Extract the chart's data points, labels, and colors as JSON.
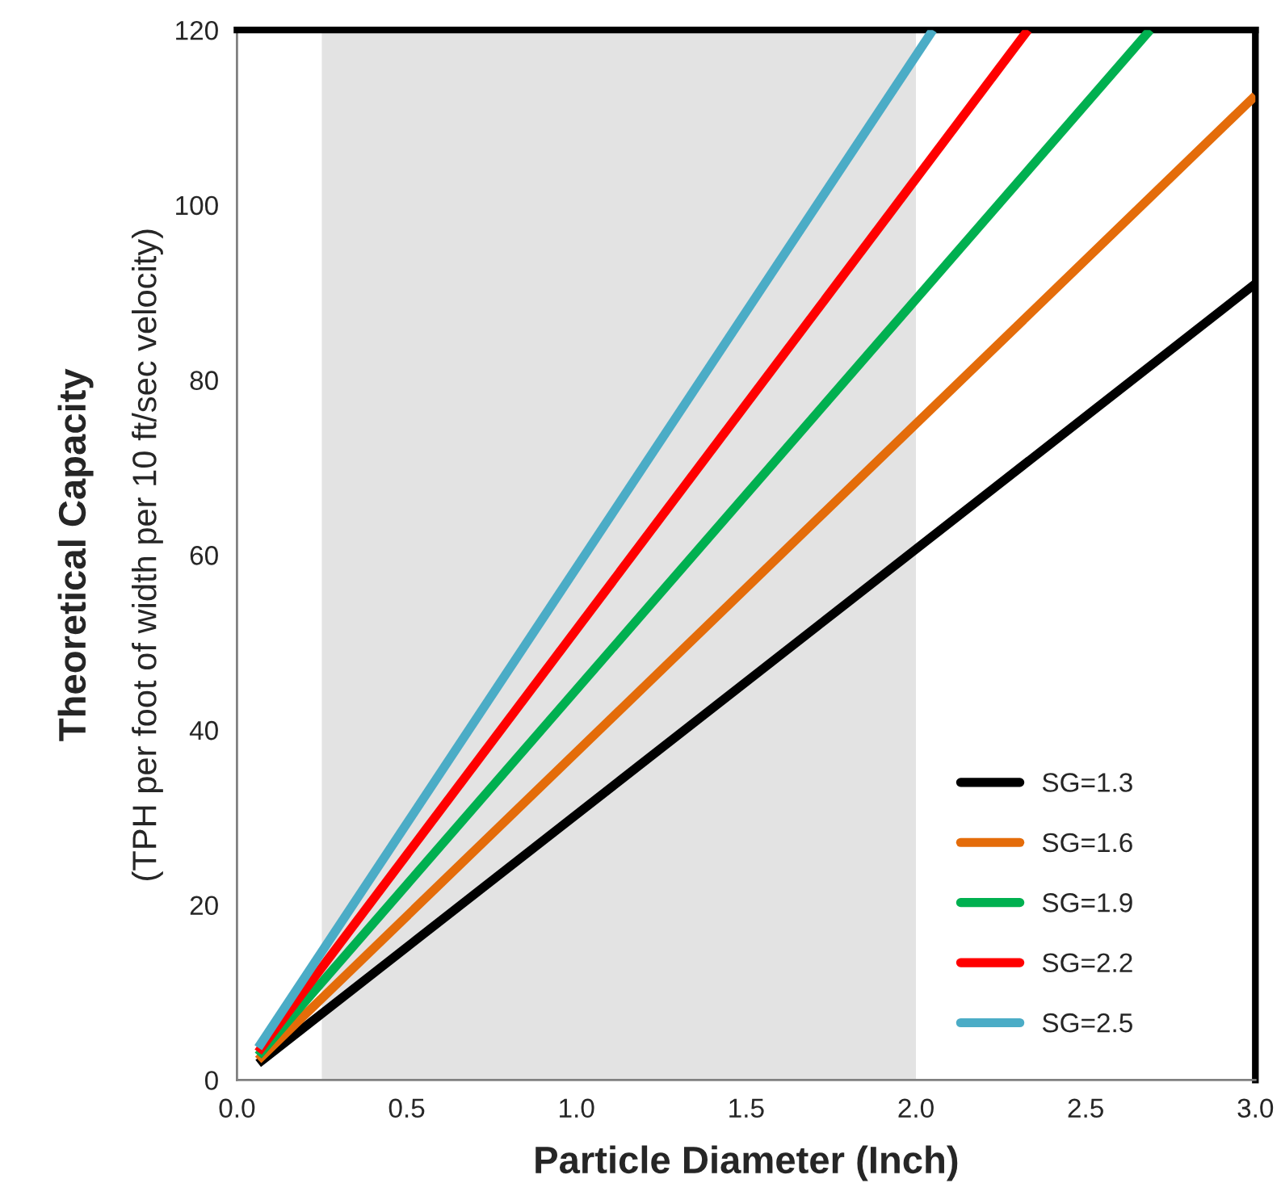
{
  "chart_data": {
    "type": "line",
    "xlabel": "Particle Diameter (Inch)",
    "ylabel": "Theoretical Capacity\n(TPH per foot of width per 10 ft/sec velocity)",
    "series": [
      {
        "name": "SG=1.3",
        "color": "#000000",
        "x": [
          0.0625,
          3.0
        ],
        "values": [
          1.9,
          91
        ]
      },
      {
        "name": "SG=1.6",
        "color": "#e46c0a",
        "x": [
          0.0625,
          3.0
        ],
        "values": [
          2.3,
          112.5
        ]
      },
      {
        "name": "SG=1.9",
        "color": "#00b050",
        "x": [
          0.0625,
          2.69
        ],
        "values": [
          2.8,
          120
        ]
      },
      {
        "name": "SG=2.2",
        "color": "#ff0000",
        "x": [
          0.0625,
          2.33
        ],
        "values": [
          3.2,
          120
        ]
      },
      {
        "name": "SG=2.5",
        "color": "#4bacc6",
        "x": [
          0.0625,
          2.05
        ],
        "values": [
          3.7,
          120
        ]
      }
    ],
    "bands": [
      {
        "axis": "x",
        "from": 0.25,
        "to": 2.0,
        "color": "#e3e3e3"
      }
    ],
    "xlim": [
      0,
      3.0
    ],
    "ylim": [
      0,
      120
    ],
    "xticks": [
      {
        "value": 0,
        "label": "0.0"
      },
      0.5,
      {
        "value": 1,
        "label": "1.0"
      },
      1.5,
      {
        "value": 2,
        "label": "2.0"
      },
      2.5,
      {
        "value": 3,
        "label": "3.0"
      }
    ],
    "yticks": [
      0,
      20,
      40,
      60,
      80,
      100,
      120
    ],
    "grid": false,
    "legend": "bottom right",
    "marker": "none",
    "line_style": "solid"
  }
}
